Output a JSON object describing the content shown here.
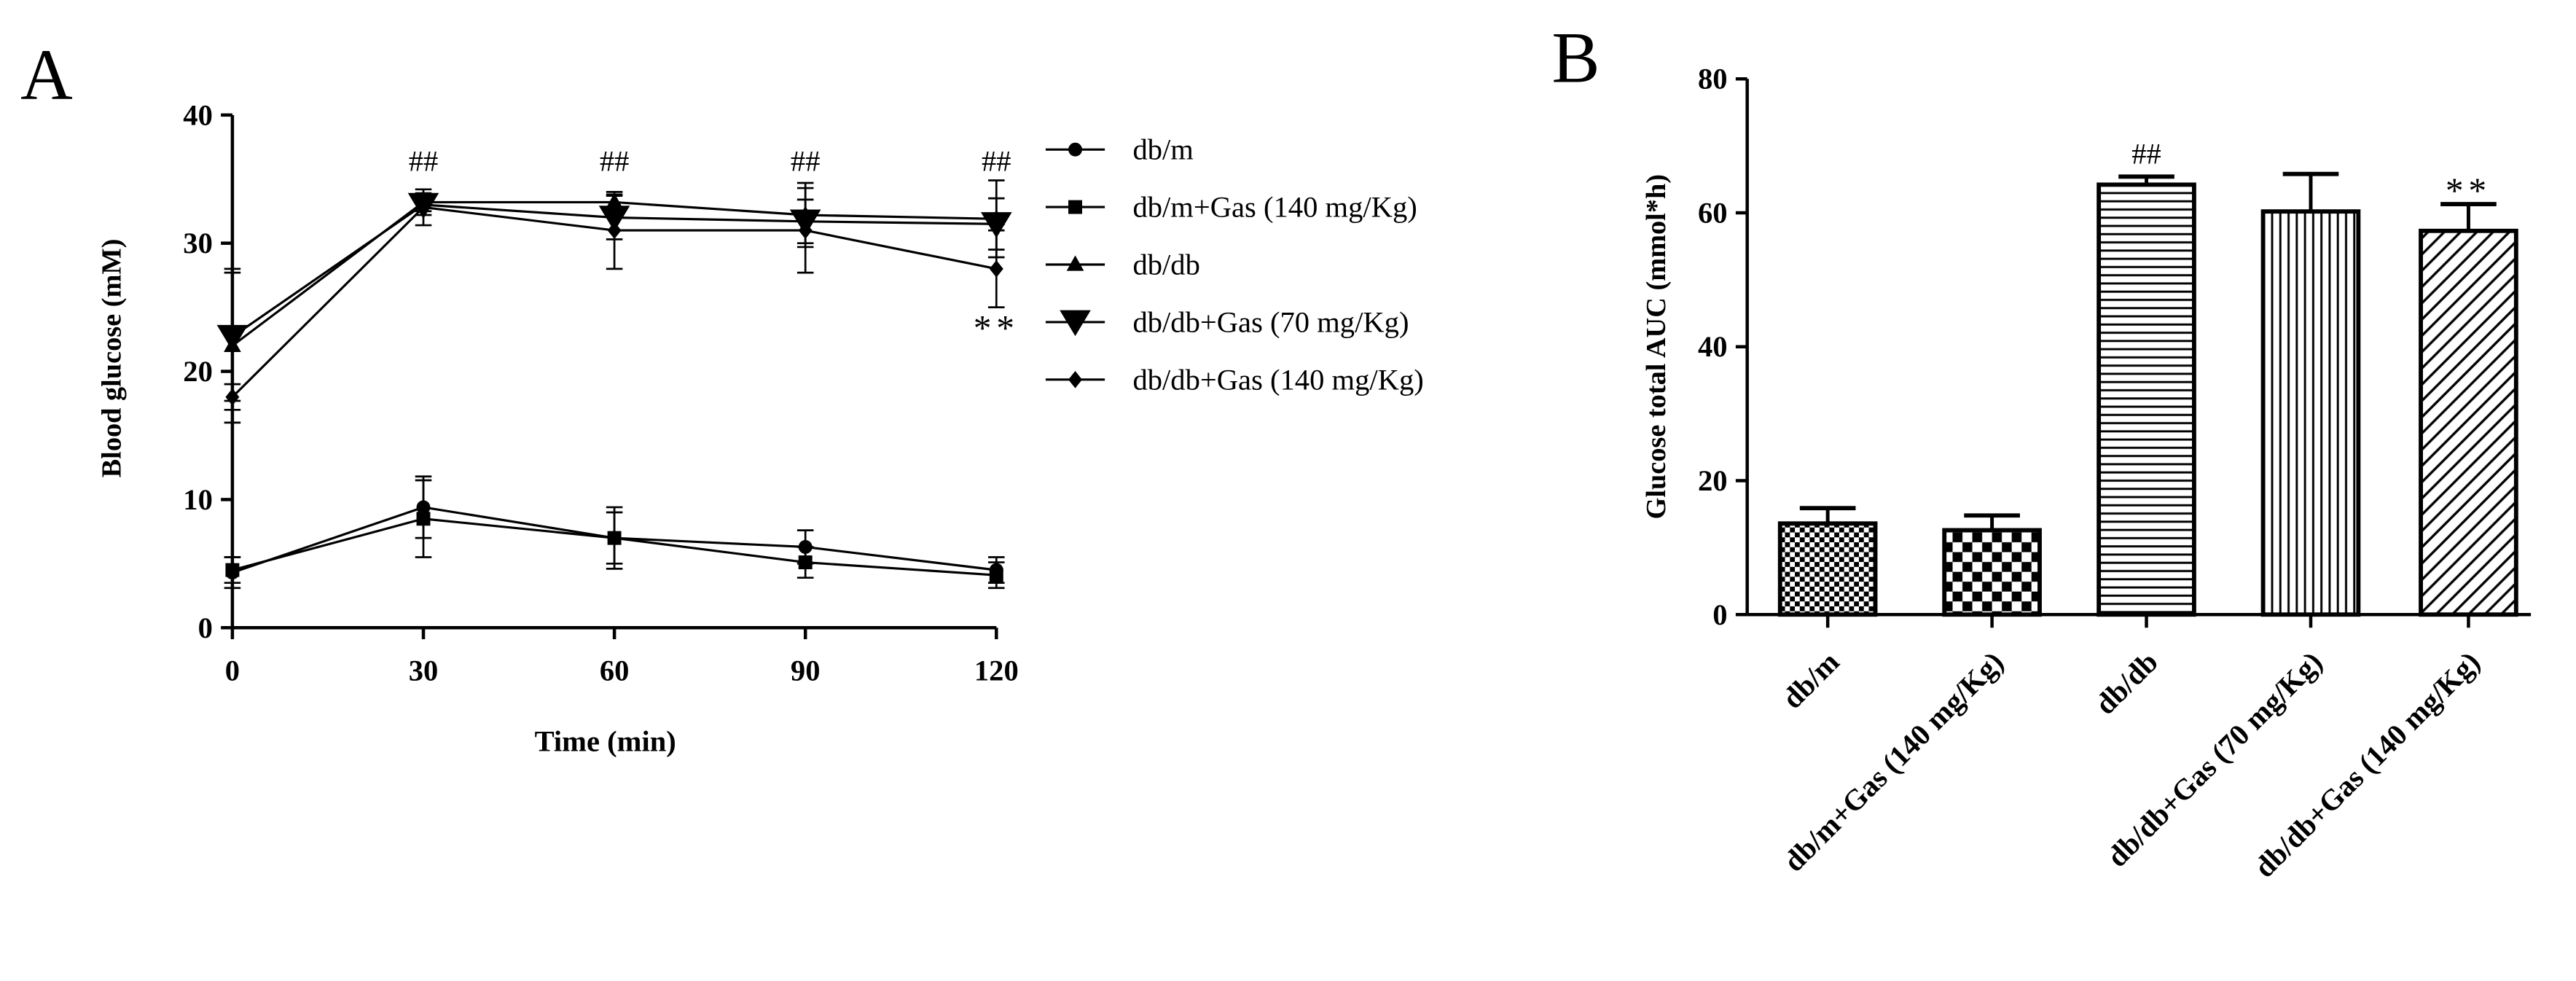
{
  "panels": {
    "A": {
      "label": "A"
    },
    "B": {
      "label": "B"
    }
  },
  "chart_data": [
    {
      "type": "line",
      "panel": "A",
      "xlabel": "Time (min)",
      "ylabel": "Blood glucose (mM)",
      "xlim": [
        0,
        120
      ],
      "ylim": [
        0,
        40
      ],
      "x_ticks": [
        "0",
        "30",
        "60",
        "90",
        "120"
      ],
      "y_ticks": [
        "0",
        "10",
        "20",
        "30",
        "40"
      ],
      "x": [
        0,
        30,
        60,
        90,
        120
      ],
      "legend_position": "right",
      "grid": false,
      "series": [
        {
          "name": "db/m",
          "marker": "circle",
          "values": [
            4.3,
            9.4,
            7.0,
            6.3,
            4.5
          ],
          "errors": [
            1.2,
            2.4,
            2.4,
            1.3,
            1.0
          ]
        },
        {
          "name": "db/m+Gas (140 mg/Kg)",
          "marker": "square",
          "values": [
            4.5,
            8.5,
            7.0,
            5.1,
            4.1
          ],
          "errors": [
            1.0,
            3.0,
            2.0,
            1.2,
            1.0
          ]
        },
        {
          "name": "db/db",
          "marker": "triangle-up",
          "values": [
            22.0,
            33.2,
            33.2,
            32.2,
            31.9
          ],
          "errors": [
            6.0,
            0.7,
            0.6,
            2.5,
            3.0
          ]
        },
        {
          "name": "db/db+Gas (70 mg/Kg)",
          "marker": "triangle-down",
          "values": [
            22.7,
            33.0,
            32.0,
            31.7,
            31.5
          ],
          "errors": [
            5.0,
            0.8,
            1.7,
            1.7,
            2.0
          ]
        },
        {
          "name": "db/db+Gas (140 mg/Kg)",
          "marker": "diamond",
          "values": [
            18.0,
            32.8,
            31.0,
            31.0,
            28.0
          ],
          "errors": [
            1.0,
            1.4,
            3.0,
            3.3,
            3.0
          ]
        }
      ],
      "annotations": [
        {
          "text": "##",
          "x": 30
        },
        {
          "text": "##",
          "x": 60
        },
        {
          "text": "##",
          "x": 90
        },
        {
          "text": "##",
          "x": 120
        },
        {
          "text": "**",
          "x": 120
        }
      ]
    },
    {
      "type": "bar",
      "panel": "B",
      "ylabel": "Glucose total AUC (mmol*h)",
      "ylim": [
        0,
        80
      ],
      "y_ticks": [
        "0",
        "20",
        "40",
        "60",
        "80"
      ],
      "categories": [
        "db/m",
        "db/m+Gas (140 mg/Kg)",
        "db/db",
        "db/db+Gas (70 mg/Kg)",
        "db/db+Gas (140 mg/Kg)"
      ],
      "values": [
        13.6,
        12.6,
        64.2,
        60.2,
        57.3
      ],
      "errors": [
        2.3,
        2.2,
        1.2,
        5.6,
        4.0
      ],
      "patterns": [
        "small-checker",
        "large-checker",
        "horizontal-lines",
        "vertical-lines",
        "diagonal-lines"
      ],
      "annotations": [
        {
          "text": "##",
          "category": "db/db"
        },
        {
          "text": "**",
          "category": "db/db+Gas (140 mg/Kg)"
        }
      ]
    }
  ]
}
